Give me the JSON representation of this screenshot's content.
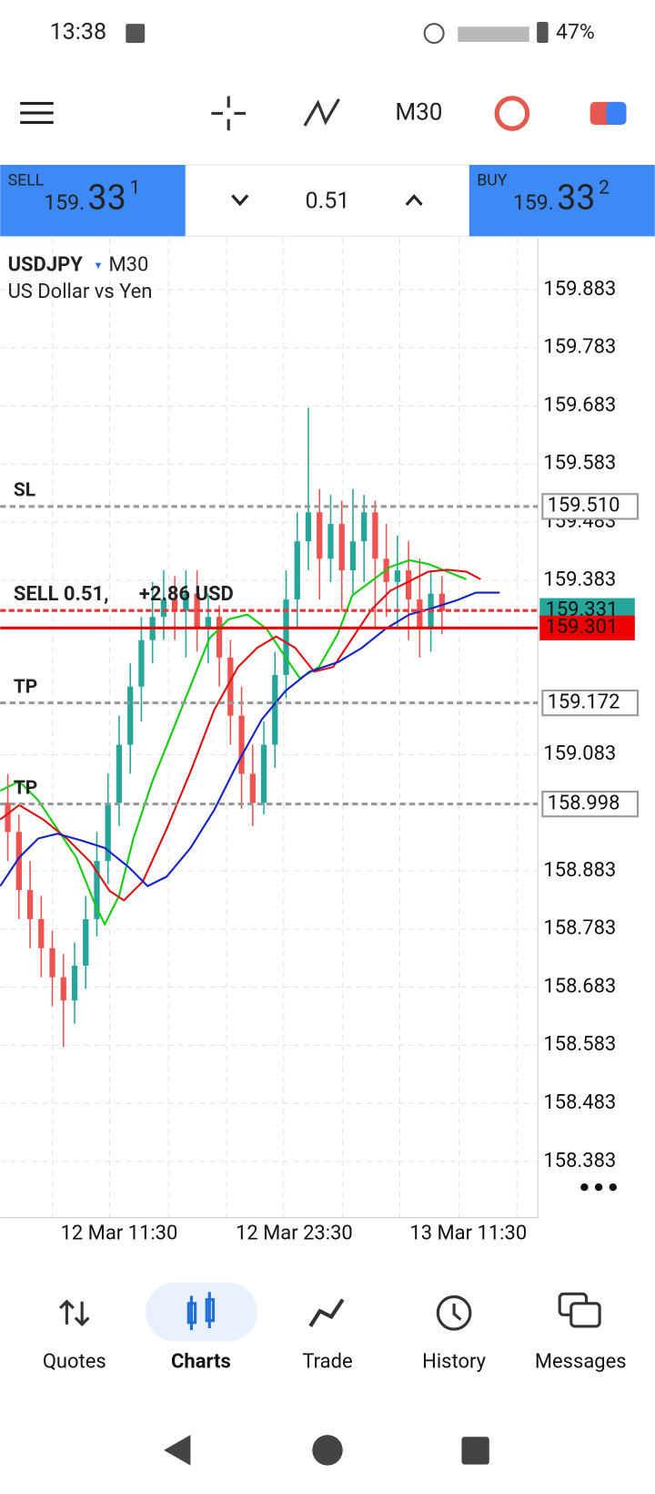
{
  "status": {
    "time": "13:38",
    "battery": "47%"
  },
  "toolbar": {
    "timeframe": "M30"
  },
  "trade_panel": {
    "sell": {
      "label": "SELL",
      "prefix": "159.",
      "big": "33",
      "sup": "1"
    },
    "volume": "0.51",
    "buy": {
      "label": "BUY",
      "prefix": "159.",
      "big": "33",
      "sup": "2"
    }
  },
  "chart": {
    "type": "candlestick",
    "symbol": "USDJPY",
    "timeframe": "M30",
    "description": "US Dollar vs Yen",
    "position_label": "SELL 0.51,",
    "position_profit": "+2.86 USD",
    "yticks": [
      159.883,
      159.783,
      159.683,
      159.583,
      159.483,
      159.383,
      159.083,
      158.883,
      158.783,
      158.683,
      158.583,
      158.483,
      158.383
    ],
    "ylim": [
      158.283,
      159.983
    ],
    "xlabels": [
      "12 Mar 11:30",
      "12 Mar 23:30",
      "13 Mar 11:30"
    ],
    "levels": [
      {
        "name": "SL",
        "value": 159.51,
        "label": "159.510"
      },
      {
        "name": "TP",
        "value": 159.172,
        "label": "159.172"
      },
      {
        "name": "TP",
        "value": 158.998,
        "label": "158.998"
      }
    ],
    "bid": {
      "value": 159.331,
      "label": "159.331"
    },
    "entry": {
      "value": 159.301,
      "label": "159.301"
    },
    "candles": [
      {
        "o": 159.0,
        "h": 159.05,
        "l": 158.9,
        "c": 158.95
      },
      {
        "o": 158.95,
        "h": 158.98,
        "l": 158.8,
        "c": 158.85
      },
      {
        "o": 158.85,
        "h": 158.9,
        "l": 158.75,
        "c": 158.8
      },
      {
        "o": 158.8,
        "h": 158.84,
        "l": 158.7,
        "c": 158.75
      },
      {
        "o": 158.75,
        "h": 158.78,
        "l": 158.65,
        "c": 158.7
      },
      {
        "o": 158.7,
        "h": 158.74,
        "l": 158.58,
        "c": 158.66
      },
      {
        "o": 158.66,
        "h": 158.76,
        "l": 158.62,
        "c": 158.72
      },
      {
        "o": 158.72,
        "h": 158.84,
        "l": 158.68,
        "c": 158.8
      },
      {
        "o": 158.8,
        "h": 158.95,
        "l": 158.77,
        "c": 158.9
      },
      {
        "o": 158.9,
        "h": 159.05,
        "l": 158.86,
        "c": 159.0
      },
      {
        "o": 159.0,
        "h": 159.15,
        "l": 158.96,
        "c": 159.1
      },
      {
        "o": 159.1,
        "h": 159.24,
        "l": 159.05,
        "c": 159.2
      },
      {
        "o": 159.2,
        "h": 159.32,
        "l": 159.14,
        "c": 159.28
      },
      {
        "o": 159.28,
        "h": 159.38,
        "l": 159.24,
        "c": 159.32
      },
      {
        "o": 159.32,
        "h": 159.4,
        "l": 159.28,
        "c": 159.35
      },
      {
        "o": 159.35,
        "h": 159.39,
        "l": 159.28,
        "c": 159.33
      },
      {
        "o": 159.33,
        "h": 159.4,
        "l": 159.25,
        "c": 159.36
      },
      {
        "o": 159.36,
        "h": 159.4,
        "l": 159.26,
        "c": 159.3
      },
      {
        "o": 159.3,
        "h": 159.36,
        "l": 159.24,
        "c": 159.32
      },
      {
        "o": 159.32,
        "h": 159.34,
        "l": 159.2,
        "c": 159.25
      },
      {
        "o": 159.25,
        "h": 159.28,
        "l": 159.1,
        "c": 159.15
      },
      {
        "o": 159.15,
        "h": 159.2,
        "l": 158.99,
        "c": 159.05
      },
      {
        "o": 159.05,
        "h": 159.1,
        "l": 158.96,
        "c": 159.0
      },
      {
        "o": 159.0,
        "h": 159.14,
        "l": 158.98,
        "c": 159.1
      },
      {
        "o": 159.1,
        "h": 159.26,
        "l": 159.06,
        "c": 159.22
      },
      {
        "o": 159.22,
        "h": 159.4,
        "l": 159.18,
        "c": 159.35
      },
      {
        "o": 159.35,
        "h": 159.5,
        "l": 159.3,
        "c": 159.45
      },
      {
        "o": 159.45,
        "h": 159.68,
        "l": 159.4,
        "c": 159.5
      },
      {
        "o": 159.5,
        "h": 159.54,
        "l": 159.35,
        "c": 159.42
      },
      {
        "o": 159.42,
        "h": 159.53,
        "l": 159.38,
        "c": 159.48
      },
      {
        "o": 159.48,
        "h": 159.52,
        "l": 159.33,
        "c": 159.4
      },
      {
        "o": 159.4,
        "h": 159.54,
        "l": 159.36,
        "c": 159.45
      },
      {
        "o": 159.45,
        "h": 159.53,
        "l": 159.38,
        "c": 159.5
      },
      {
        "o": 159.5,
        "h": 159.52,
        "l": 159.3,
        "c": 159.42
      },
      {
        "o": 159.42,
        "h": 159.48,
        "l": 159.32,
        "c": 159.38
      },
      {
        "o": 159.38,
        "h": 159.46,
        "l": 159.3,
        "c": 159.4
      },
      {
        "o": 159.4,
        "h": 159.45,
        "l": 159.28,
        "c": 159.35
      },
      {
        "o": 159.35,
        "h": 159.42,
        "l": 159.25,
        "c": 159.3
      },
      {
        "o": 159.3,
        "h": 159.4,
        "l": 159.26,
        "c": 159.36
      },
      {
        "o": 159.36,
        "h": 159.39,
        "l": 159.29,
        "c": 159.33
      }
    ],
    "up_color": "#26a69a",
    "down_color": "#ef5350"
  },
  "bottom_nav": [
    "Quotes",
    "Charts",
    "Trade",
    "History",
    "Messages"
  ]
}
